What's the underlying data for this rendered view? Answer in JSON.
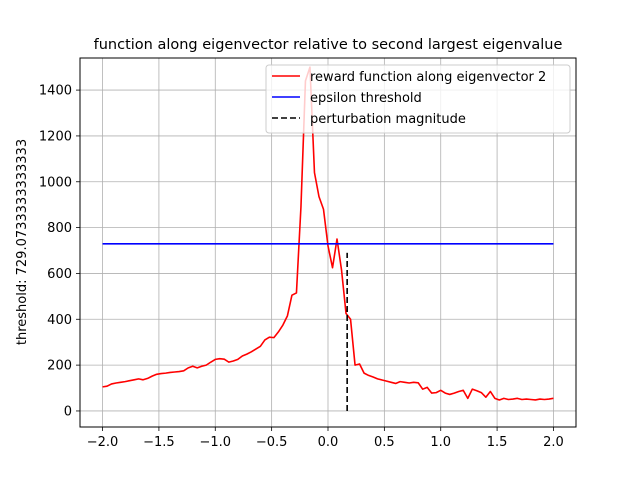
{
  "chart_data": {
    "type": "line",
    "title": "function along eigenvector relative to second largest eigenvalue",
    "xlabel": "",
    "ylabel": "threshold: 729.0733333333333",
    "xlim": [
      -2.2,
      2.2
    ],
    "ylim": [
      -70,
      1540
    ],
    "xticks": [
      -2.0,
      -1.5,
      -1.0,
      -0.5,
      0.0,
      0.5,
      1.0,
      1.5,
      2.0
    ],
    "xtick_labels": [
      "−2.0",
      "−1.5",
      "−1.0",
      "−0.5",
      "0.0",
      "0.5",
      "1.0",
      "1.5",
      "2.0"
    ],
    "yticks": [
      0,
      200,
      400,
      600,
      800,
      1000,
      1200,
      1400
    ],
    "ytick_labels": [
      "0",
      "200",
      "400",
      "600",
      "800",
      "1000",
      "1200",
      "1400"
    ],
    "grid": true,
    "legend_position": "top-right",
    "series": [
      {
        "name": "reward function along eigenvector 2",
        "color": "#ff0000",
        "style": "solid",
        "x": [
          -2.0,
          -1.96,
          -1.92,
          -1.88,
          -1.84,
          -1.8,
          -1.76,
          -1.72,
          -1.68,
          -1.64,
          -1.6,
          -1.56,
          -1.52,
          -1.48,
          -1.44,
          -1.4,
          -1.36,
          -1.32,
          -1.28,
          -1.24,
          -1.2,
          -1.16,
          -1.12,
          -1.08,
          -1.04,
          -1.0,
          -0.96,
          -0.92,
          -0.88,
          -0.84,
          -0.8,
          -0.76,
          -0.72,
          -0.68,
          -0.64,
          -0.6,
          -0.56,
          -0.52,
          -0.48,
          -0.44,
          -0.4,
          -0.36,
          -0.32,
          -0.28,
          -0.24,
          -0.2,
          -0.16,
          -0.12,
          -0.08,
          -0.04,
          0.0,
          0.04,
          0.08,
          0.12,
          0.16,
          0.2,
          0.24,
          0.28,
          0.32,
          0.36,
          0.4,
          0.44,
          0.48,
          0.52,
          0.56,
          0.6,
          0.64,
          0.68,
          0.72,
          0.76,
          0.8,
          0.84,
          0.88,
          0.92,
          0.96,
          1.0,
          1.04,
          1.08,
          1.12,
          1.16,
          1.2,
          1.24,
          1.28,
          1.32,
          1.36,
          1.4,
          1.44,
          1.48,
          1.52,
          1.56,
          1.6,
          1.64,
          1.68,
          1.72,
          1.76,
          1.8,
          1.84,
          1.88,
          1.92,
          1.96,
          2.0
        ],
        "y": [
          105,
          108,
          118,
          122,
          125,
          128,
          132,
          136,
          140,
          136,
          142,
          152,
          160,
          163,
          165,
          168,
          170,
          172,
          175,
          188,
          195,
          188,
          195,
          200,
          213,
          225,
          228,
          226,
          213,
          218,
          225,
          240,
          248,
          258,
          270,
          282,
          310,
          322,
          320,
          345,
          375,
          415,
          505,
          515,
          890,
          1440,
          1500,
          1040,
          935,
          880,
          720,
          625,
          750,
          615,
          425,
          400,
          200,
          205,
          165,
          155,
          148,
          140,
          135,
          130,
          125,
          120,
          128,
          125,
          122,
          125,
          123,
          95,
          103,
          78,
          80,
          90,
          78,
          72,
          78,
          85,
          90,
          55,
          95,
          88,
          80,
          60,
          85,
          55,
          48,
          55,
          50,
          52,
          55,
          50,
          52,
          50,
          48,
          52,
          50,
          52,
          55
        ]
      },
      {
        "name": "epsilon threshold",
        "color": "#0000ff",
        "style": "solid",
        "x": [
          -2.0,
          2.0
        ],
        "y": [
          729.0733333333333,
          729.0733333333333
        ]
      },
      {
        "name": "perturbation magnitude",
        "color": "#000000",
        "style": "dashed",
        "x": [
          0.17,
          0.17
        ],
        "y": [
          0,
          690
        ]
      }
    ]
  }
}
